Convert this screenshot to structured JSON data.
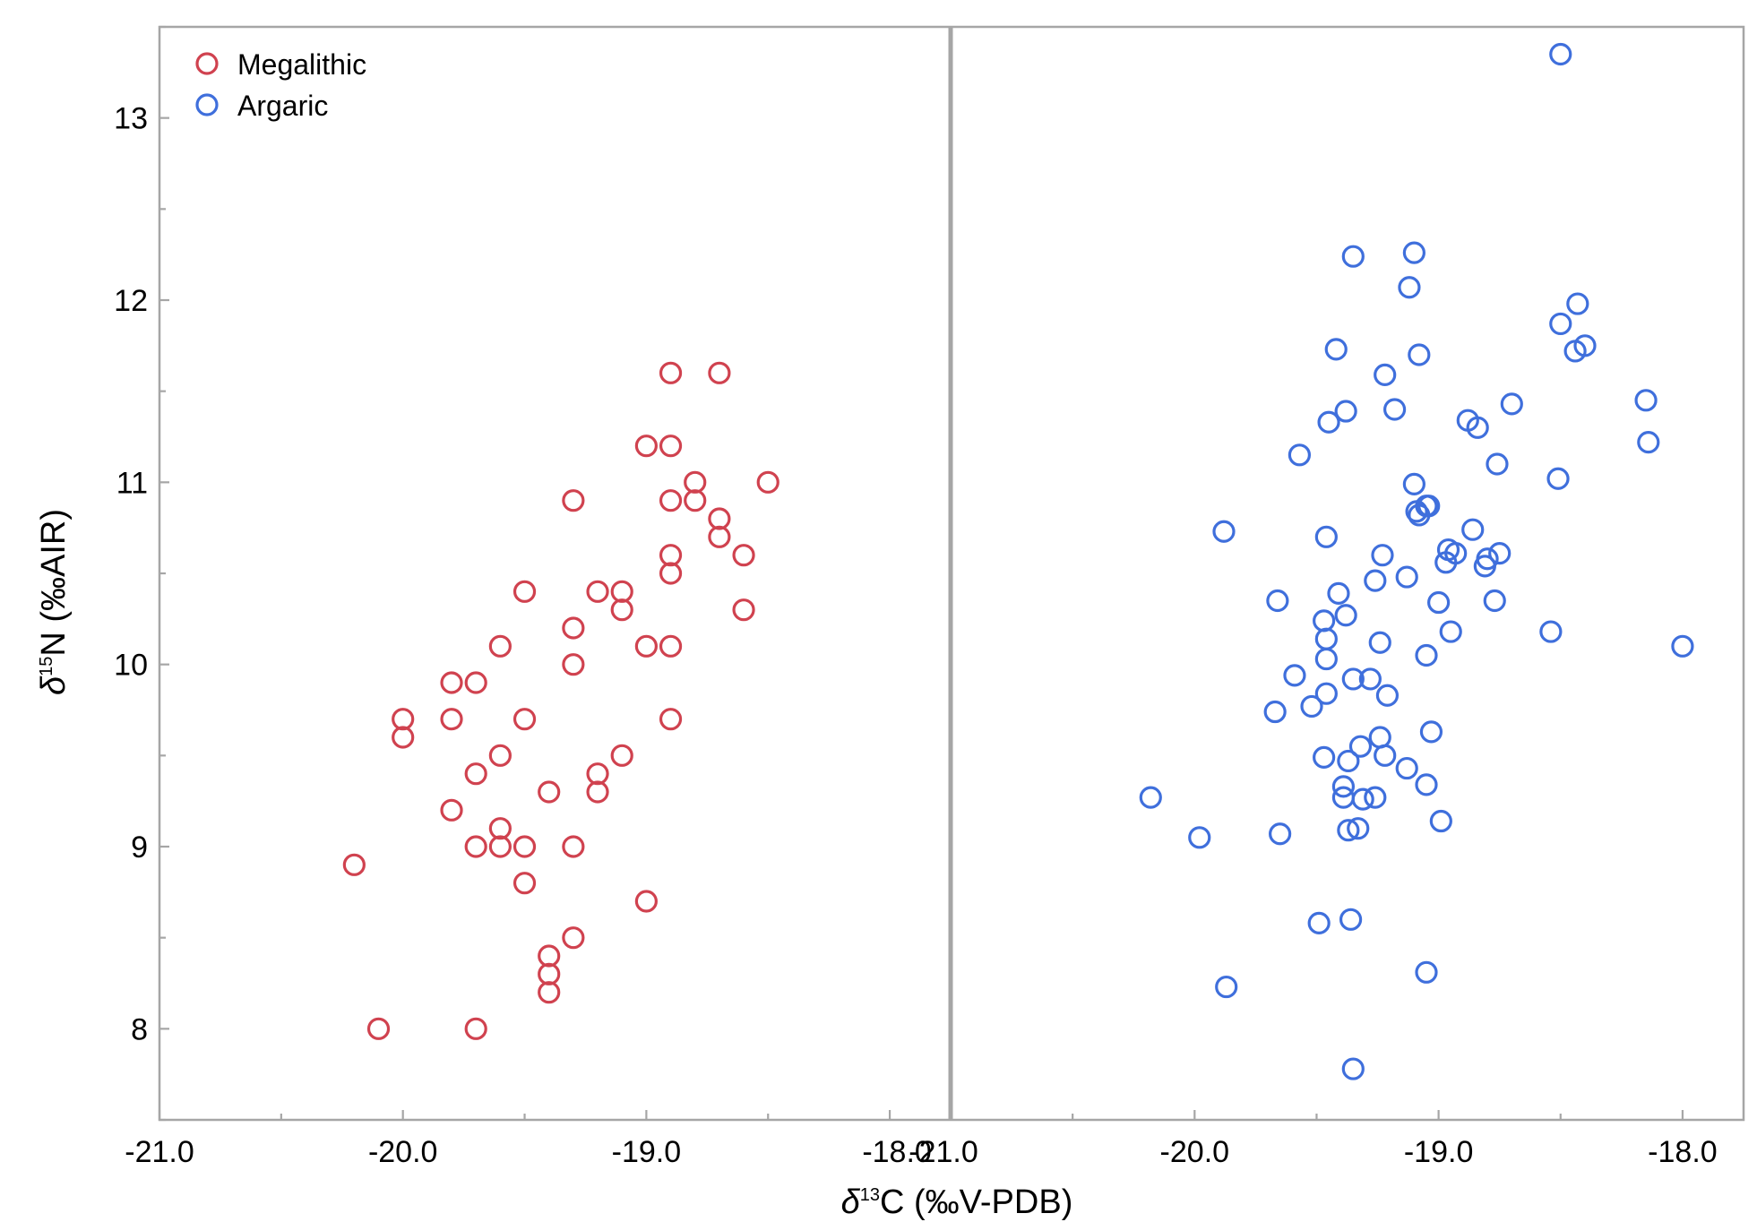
{
  "chart_data": {
    "type": "scatter",
    "panels": [
      {
        "name": "Megalithic",
        "xlim": [
          -21.0,
          -17.75
        ]
      },
      {
        "name": "Argaric",
        "xlim": [
          -21.0,
          -17.75
        ]
      }
    ],
    "ylim": [
      7.5,
      13.5
    ],
    "x_ticks": [
      "-21.0",
      "-20.0",
      "-19.0",
      "-18.0"
    ],
    "y_ticks": [
      "8",
      "9",
      "10",
      "11",
      "12",
      "13"
    ],
    "ylabel": {
      "symbol": "δ",
      "sup": "15",
      "main": "N (‰AIR)"
    },
    "xlabel": {
      "symbol": "δ",
      "sup": "13",
      "main": "C (‰V-PDB)"
    },
    "legend": {
      "placement": "top-left",
      "entries": [
        "Megalithic",
        "Argaric"
      ]
    },
    "series": [
      {
        "name": "Megalithic",
        "color": "#d0424f",
        "marker": "open-circle",
        "panel": 0,
        "points": [
          [
            -18.9,
            11.6
          ],
          [
            -18.7,
            11.6
          ],
          [
            -19.0,
            11.2
          ],
          [
            -18.9,
            11.2
          ],
          [
            -18.8,
            11.0
          ],
          [
            -18.5,
            11.0
          ],
          [
            -19.3,
            10.9
          ],
          [
            -18.9,
            10.9
          ],
          [
            -18.8,
            10.9
          ],
          [
            -18.7,
            10.8
          ],
          [
            -18.7,
            10.7
          ],
          [
            -18.9,
            10.6
          ],
          [
            -18.6,
            10.6
          ],
          [
            -18.9,
            10.5
          ],
          [
            -19.5,
            10.4
          ],
          [
            -19.2,
            10.4
          ],
          [
            -19.1,
            10.4
          ],
          [
            -19.1,
            10.3
          ],
          [
            -18.6,
            10.3
          ],
          [
            -19.3,
            10.2
          ],
          [
            -19.6,
            10.1
          ],
          [
            -19.0,
            10.1
          ],
          [
            -18.9,
            10.1
          ],
          [
            -19.3,
            10.0
          ],
          [
            -19.8,
            9.9
          ],
          [
            -19.7,
            9.9
          ],
          [
            -20.0,
            9.7
          ],
          [
            -19.8,
            9.7
          ],
          [
            -19.5,
            9.7
          ],
          [
            -18.9,
            9.7
          ],
          [
            -20.0,
            9.6
          ],
          [
            -19.6,
            9.5
          ],
          [
            -19.1,
            9.5
          ],
          [
            -19.7,
            9.4
          ],
          [
            -19.2,
            9.4
          ],
          [
            -19.4,
            9.3
          ],
          [
            -19.2,
            9.3
          ],
          [
            -19.8,
            9.2
          ],
          [
            -19.6,
            9.1
          ],
          [
            -19.7,
            9.0
          ],
          [
            -19.6,
            9.0
          ],
          [
            -19.5,
            9.0
          ],
          [
            -19.3,
            9.0
          ],
          [
            -20.2,
            8.9
          ],
          [
            -19.5,
            8.8
          ],
          [
            -19.0,
            8.7
          ],
          [
            -19.3,
            8.5
          ],
          [
            -19.4,
            8.4
          ],
          [
            -19.4,
            8.3
          ],
          [
            -19.4,
            8.2
          ],
          [
            -20.1,
            8.0
          ],
          [
            -19.7,
            8.0
          ]
        ]
      },
      {
        "name": "Argaric",
        "color": "#3f6fdc",
        "marker": "open-circle",
        "panel": 1,
        "points": [
          [
            -18.5,
            13.35
          ],
          [
            -19.35,
            12.24
          ],
          [
            -19.1,
            12.26
          ],
          [
            -19.12,
            12.07
          ],
          [
            -18.43,
            11.98
          ],
          [
            -18.5,
            11.87
          ],
          [
            -19.42,
            11.73
          ],
          [
            -19.08,
            11.7
          ],
          [
            -18.44,
            11.72
          ],
          [
            -18.4,
            11.75
          ],
          [
            -19.22,
            11.59
          ],
          [
            -18.7,
            11.43
          ],
          [
            -18.15,
            11.45
          ],
          [
            -19.45,
            11.33
          ],
          [
            -19.38,
            11.39
          ],
          [
            -19.18,
            11.4
          ],
          [
            -18.88,
            11.34
          ],
          [
            -18.84,
            11.3
          ],
          [
            -19.57,
            11.15
          ],
          [
            -18.76,
            11.1
          ],
          [
            -18.14,
            11.22
          ],
          [
            -18.51,
            11.02
          ],
          [
            -19.1,
            10.99
          ],
          [
            -19.09,
            10.84
          ],
          [
            -19.08,
            10.82
          ],
          [
            -19.05,
            10.87
          ],
          [
            -19.04,
            10.87
          ],
          [
            -19.88,
            10.73
          ],
          [
            -19.46,
            10.7
          ],
          [
            -18.86,
            10.74
          ],
          [
            -18.96,
            10.63
          ],
          [
            -18.93,
            10.61
          ],
          [
            -19.23,
            10.6
          ],
          [
            -18.97,
            10.56
          ],
          [
            -18.81,
            10.54
          ],
          [
            -18.8,
            10.58
          ],
          [
            -18.75,
            10.61
          ],
          [
            -19.26,
            10.46
          ],
          [
            -19.13,
            10.48
          ],
          [
            -19.66,
            10.35
          ],
          [
            -19.41,
            10.39
          ],
          [
            -19.0,
            10.34
          ],
          [
            -18.77,
            10.35
          ],
          [
            -19.47,
            10.24
          ],
          [
            -19.38,
            10.27
          ],
          [
            -19.46,
            10.14
          ],
          [
            -18.95,
            10.18
          ],
          [
            -18.54,
            10.18
          ],
          [
            -19.24,
            10.12
          ],
          [
            -18.0,
            10.1
          ],
          [
            -19.46,
            10.03
          ],
          [
            -19.05,
            10.05
          ],
          [
            -19.59,
            9.94
          ],
          [
            -19.35,
            9.92
          ],
          [
            -19.28,
            9.92
          ],
          [
            -19.46,
            9.84
          ],
          [
            -19.21,
            9.83
          ],
          [
            -19.67,
            9.74
          ],
          [
            -19.52,
            9.77
          ],
          [
            -19.03,
            9.63
          ],
          [
            -19.32,
            9.55
          ],
          [
            -19.24,
            9.6
          ],
          [
            -19.47,
            9.49
          ],
          [
            -19.37,
            9.47
          ],
          [
            -19.22,
            9.5
          ],
          [
            -19.13,
            9.43
          ],
          [
            -19.39,
            9.33
          ],
          [
            -19.05,
            9.34
          ],
          [
            -20.18,
            9.27
          ],
          [
            -19.39,
            9.27
          ],
          [
            -19.31,
            9.26
          ],
          [
            -19.26,
            9.27
          ],
          [
            -18.99,
            9.14
          ],
          [
            -19.37,
            9.09
          ],
          [
            -19.33,
            9.1
          ],
          [
            -19.98,
            9.05
          ],
          [
            -19.65,
            9.07
          ],
          [
            -19.49,
            8.58
          ],
          [
            -19.36,
            8.6
          ],
          [
            -19.05,
            8.31
          ],
          [
            -19.87,
            8.23
          ],
          [
            -19.35,
            7.78
          ]
        ]
      }
    ]
  }
}
